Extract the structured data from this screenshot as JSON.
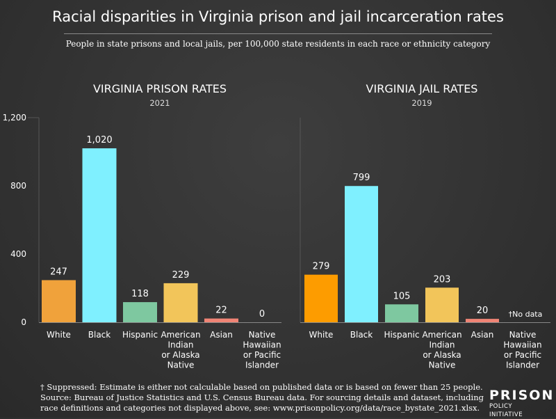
{
  "title": "Racial disparities in Virginia prison and jail incarceration rates",
  "subtitle": "People in state prisons and local jails, per 100,000 state residents in each race or ethnicity category",
  "chart_data": [
    {
      "type": "bar",
      "title": "VIRGINIA PRISON RATES",
      "subtitle": "2021",
      "ylim": [
        0,
        1200
      ],
      "yticks": [
        "0",
        "400",
        "800",
        "1,200"
      ],
      "ytick_values": [
        0,
        400,
        800,
        1200
      ],
      "grid": false,
      "categories": [
        [
          "White"
        ],
        [
          "Black"
        ],
        [
          "Hispanic"
        ],
        [
          "American",
          "Indian",
          "or Alaska",
          "Native"
        ],
        [
          "Asian"
        ],
        [
          "Native",
          "Hawaiian",
          "or Pacific",
          "Islander"
        ]
      ],
      "values": [
        247,
        1020,
        118,
        229,
        22,
        0
      ],
      "value_labels": [
        "247",
        "1,020",
        "118",
        "229",
        "22",
        "0"
      ],
      "colors": [
        "#f0a23b",
        "#7ff0ff",
        "#7ec8a0",
        "#f2c55a",
        "#f08475",
        "#cfcfcf"
      ]
    },
    {
      "type": "bar",
      "title": "VIRGINIA JAIL RATES",
      "subtitle": "2019",
      "ylim": [
        0,
        1200
      ],
      "grid": false,
      "categories": [
        [
          "White"
        ],
        [
          "Black"
        ],
        [
          "Hispanic"
        ],
        [
          "American",
          "Indian",
          "or Alaska",
          "Native"
        ],
        [
          "Asian"
        ],
        [
          "Native",
          "Hawaiian",
          "or Pacific",
          "Islander"
        ]
      ],
      "values": [
        279,
        799,
        105,
        203,
        20,
        null
      ],
      "value_labels": [
        "279",
        "799",
        "105",
        "203",
        "20",
        "†No data"
      ],
      "colors": [
        "#fd9c00",
        "#7ff0ff",
        "#7ec8a0",
        "#f2c55a",
        "#f08475",
        "#cfcfcf"
      ]
    }
  ],
  "footnotes": [
    "† Suppressed: Estimate is either not calculable based on published data or is based on fewer than 25 people.",
    "Source: Bureau of Justice Statistics and U.S. Census Bureau data. For sourcing details and dataset, including",
    "race definitions and categories not displayed above, see: www.prisonpolicy.org/data/race_bystate_2021.xlsx."
  ],
  "logo": {
    "line1": "PRISON",
    "line2": "POLICY INITIATIVE"
  }
}
